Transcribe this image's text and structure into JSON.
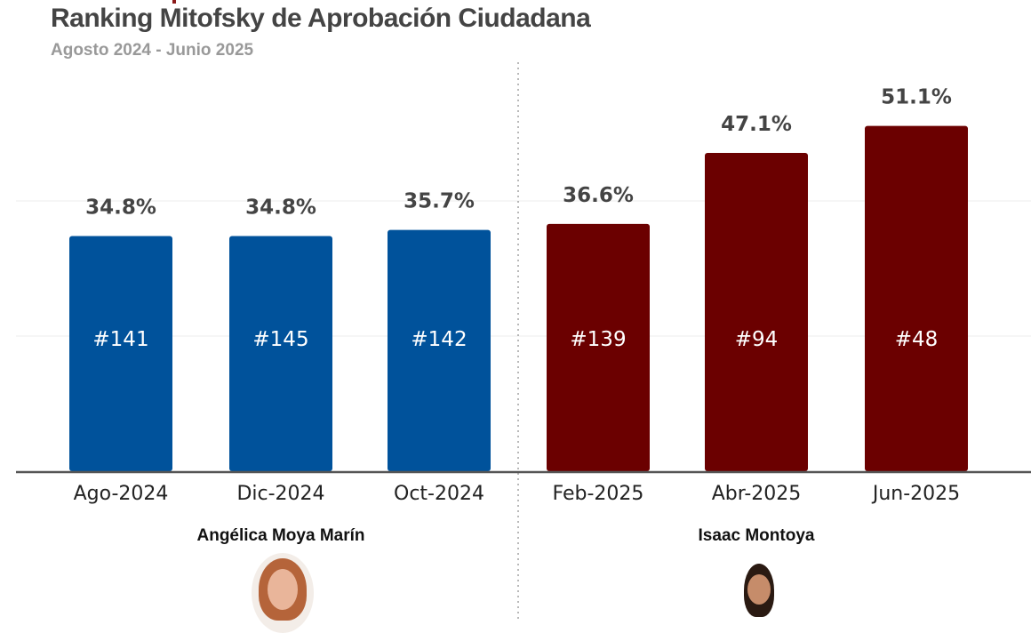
{
  "chart_data": {
    "type": "bar",
    "title": "Ranking Mitofsky de Aprobación Ciudadana",
    "subtitle": "Agosto 2024 - Junio 2025",
    "categories": [
      "Ago-2024",
      "Dic-2024",
      "Oct-2024",
      "Feb-2025",
      "Abr-2025",
      "Jun-2025"
    ],
    "values": [
      34.8,
      34.8,
      35.7,
      36.6,
      47.1,
      51.1
    ],
    "value_labels": [
      "34.8%",
      "34.8%",
      "35.7%",
      "36.6%",
      "47.1%",
      "51.1%"
    ],
    "rank_labels": [
      "#141",
      "#145",
      "#142",
      "#139",
      "#94",
      "#48"
    ],
    "groups": [
      {
        "name": "Angélica Moya Marín",
        "indices": [
          0,
          1,
          2
        ],
        "color": "#00529b"
      },
      {
        "name": "Isaac Montoya",
        "indices": [
          3,
          4,
          5
        ],
        "color": "#6b0000"
      }
    ],
    "ylim": [
      0,
      70
    ],
    "gridlines": [
      20,
      40
    ],
    "grid": true,
    "xlabel": "",
    "ylabel": ""
  }
}
